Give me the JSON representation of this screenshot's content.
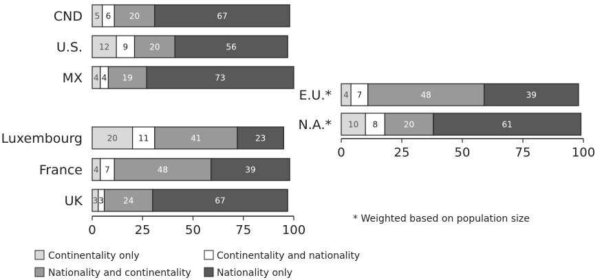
{
  "chart_data": [
    {
      "type": "bar",
      "orientation": "horizontal",
      "stacked": true,
      "categories": [
        "CND",
        "U.S.",
        "MX",
        "Luxembourg",
        "France",
        "UK"
      ],
      "series": [
        {
          "name": "Continentality only",
          "values": [
            5,
            12,
            4,
            20,
            4,
            3
          ]
        },
        {
          "name": "Continentality and nationality",
          "values": [
            6,
            9,
            4,
            11,
            7,
            3
          ]
        },
        {
          "name": "Nationality and continentality",
          "values": [
            20,
            20,
            19,
            41,
            48,
            24
          ]
        },
        {
          "name": "Nationality only",
          "values": [
            67,
            56,
            73,
            23,
            39,
            67
          ]
        }
      ],
      "xlim": [
        0,
        100
      ],
      "xticks": [
        0,
        25,
        50,
        75,
        100
      ],
      "grid": false,
      "legend": "bottom"
    },
    {
      "type": "bar",
      "orientation": "horizontal",
      "stacked": true,
      "categories": [
        "E.U.*",
        "N.A.*"
      ],
      "series": [
        {
          "name": "Continentality only",
          "values": [
            4,
            10
          ]
        },
        {
          "name": "Continentality and nationality",
          "values": [
            7,
            8
          ]
        },
        {
          "name": "Nationality and continentality",
          "values": [
            48,
            20
          ]
        },
        {
          "name": "Nationality only",
          "values": [
            39,
            61
          ]
        }
      ],
      "xlim": [
        0,
        100
      ],
      "xticks": [
        0,
        25,
        50,
        75,
        100
      ],
      "grid": false,
      "annotation": "* Weighted based on population size"
    }
  ],
  "legend": {
    "items": [
      "Continentality only",
      "Continentality and nationality",
      "Nationality and continentality",
      "Nationality only"
    ]
  },
  "colors": {
    "continentality_only": "#d9d9d9",
    "continentality_and_nationality": "#ffffff",
    "nationality_and_continentality": "#999999",
    "nationality_only": "#595959",
    "outline": "#222222"
  }
}
